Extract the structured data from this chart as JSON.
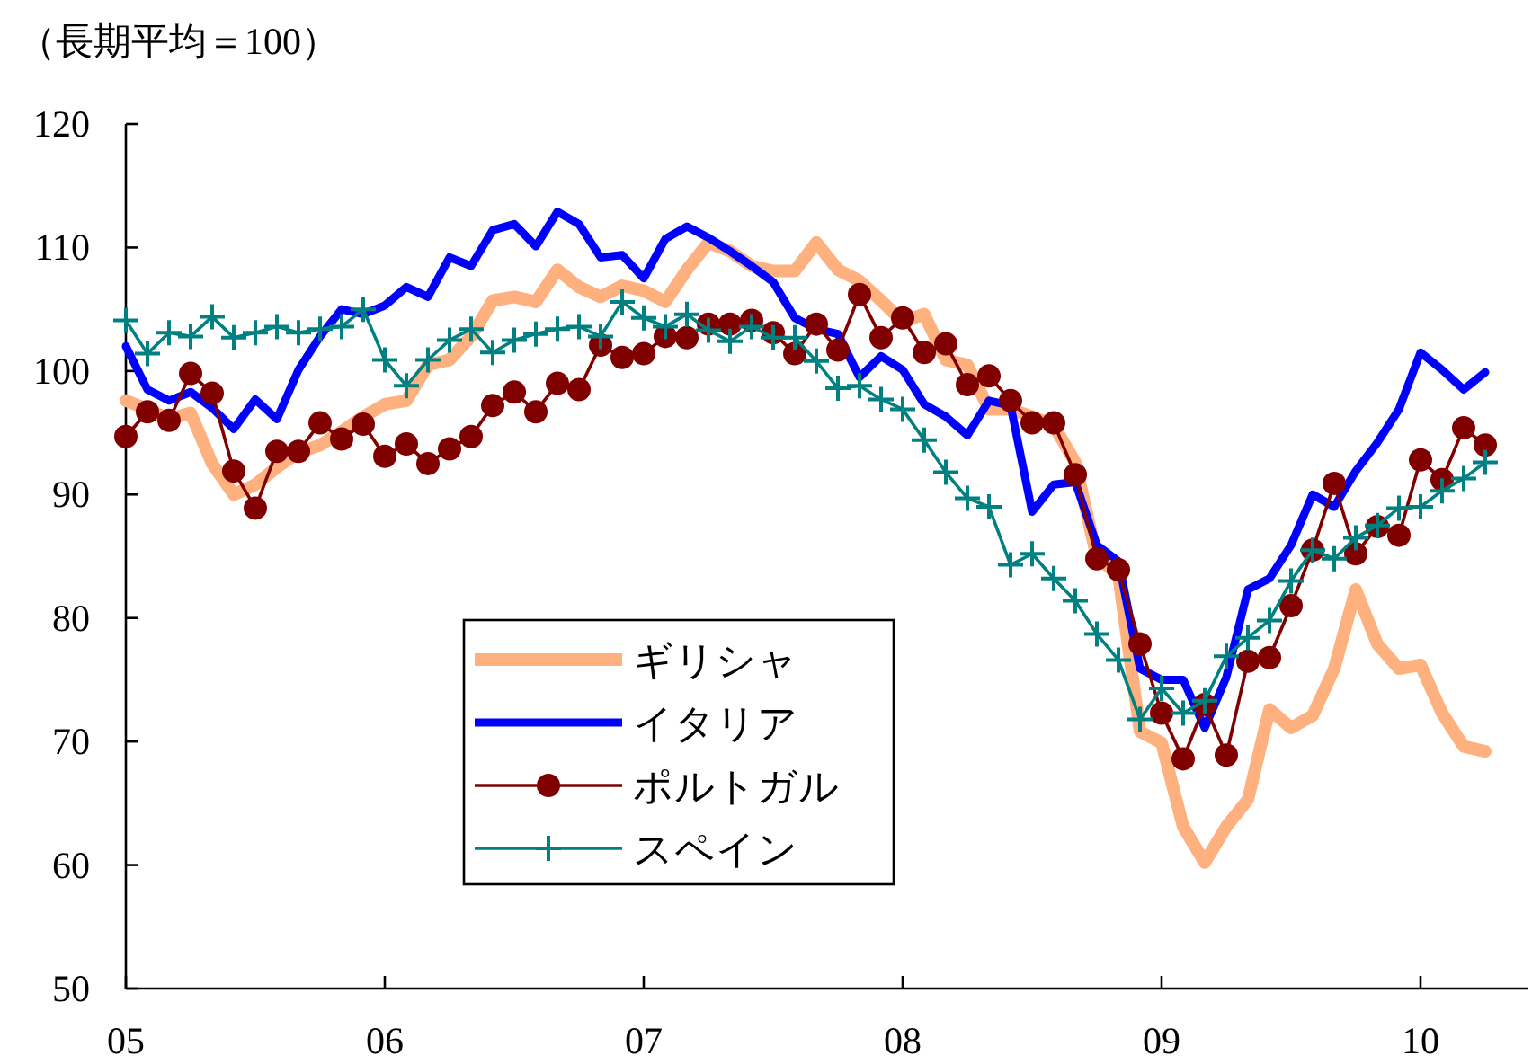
{
  "chart_data": {
    "type": "line",
    "ylabel": "（長期平均＝100）",
    "x": [
      "2005-01",
      "2005-02",
      "2005-03",
      "2005-04",
      "2005-05",
      "2005-06",
      "2005-07",
      "2005-08",
      "2005-09",
      "2005-10",
      "2005-11",
      "2005-12",
      "2006-01",
      "2006-02",
      "2006-03",
      "2006-04",
      "2006-05",
      "2006-06",
      "2006-07",
      "2006-08",
      "2006-09",
      "2006-10",
      "2006-11",
      "2006-12",
      "2007-01",
      "2007-02",
      "2007-03",
      "2007-04",
      "2007-05",
      "2007-06",
      "2007-07",
      "2007-08",
      "2007-09",
      "2007-10",
      "2007-11",
      "2007-12",
      "2008-01",
      "2008-02",
      "2008-03",
      "2008-04",
      "2008-05",
      "2008-06",
      "2008-07",
      "2008-08",
      "2008-09",
      "2008-10",
      "2008-11",
      "2008-12",
      "2009-01",
      "2009-02",
      "2009-03",
      "2009-04",
      "2009-05",
      "2009-06",
      "2009-07",
      "2009-08",
      "2009-09",
      "2009-10",
      "2009-11",
      "2009-12",
      "2010-01",
      "2010-02",
      "2010-03",
      "2010-04"
    ],
    "xlim": [
      "2005-01",
      "2010-06"
    ],
    "xticks": [
      {
        "value": "2005-01",
        "label": "05"
      },
      {
        "value": "2006-01",
        "label": "06"
      },
      {
        "value": "2007-01",
        "label": "07"
      },
      {
        "value": "2008-01",
        "label": "08"
      },
      {
        "value": "2009-01",
        "label": "09"
      },
      {
        "value": "2010-01",
        "label": "10"
      }
    ],
    "ylim": [
      50,
      120
    ],
    "yticks": [
      50,
      60,
      70,
      80,
      90,
      100,
      110,
      120
    ],
    "legend": "bottom",
    "grid": false,
    "series": [
      {
        "name": "ギリシャ",
        "color": "#ffb07f",
        "marker": "none",
        "values": [
          97.6,
          96.9,
          96.1,
          96.6,
          92.5,
          90.0,
          90.8,
          92.2,
          93.4,
          94.0,
          95.1,
          96.3,
          97.3,
          97.6,
          100.5,
          100.9,
          102.8,
          105.7,
          106.0,
          105.6,
          108.2,
          106.8,
          106.0,
          106.9,
          106.5,
          105.6,
          108.2,
          110.4,
          109.7,
          108.5,
          108.1,
          108.1,
          110.4,
          108.2,
          107.3,
          105.7,
          104.0,
          104.6,
          100.9,
          100.5,
          96.9,
          96.9,
          96.3,
          95.6,
          92.6,
          84.9,
          83.5,
          70.8,
          69.9,
          63.1,
          60.2,
          63.1,
          65.3,
          72.6,
          71.1,
          72.1,
          75.9,
          82.3,
          77.9,
          75.9,
          76.2,
          72.3,
          69.6,
          69.2
        ]
      },
      {
        "name": "イタリア",
        "color": "#0000ff",
        "marker": "none",
        "values": [
          102.0,
          98.5,
          97.6,
          98.3,
          97.0,
          95.3,
          97.7,
          96.1,
          100.1,
          102.8,
          105.0,
          104.6,
          105.3,
          106.8,
          106.0,
          109.2,
          108.5,
          111.4,
          111.9,
          110.1,
          112.9,
          111.9,
          109.2,
          109.4,
          107.5,
          110.7,
          111.7,
          110.8,
          109.7,
          108.5,
          107.2,
          104.3,
          103.4,
          103.0,
          99.5,
          101.2,
          100.1,
          97.3,
          96.3,
          94.8,
          97.6,
          97.2,
          88.6,
          90.8,
          91.0,
          85.9,
          84.6,
          75.9,
          75.0,
          75.0,
          71.1,
          75.2,
          82.3,
          83.2,
          85.9,
          90.0,
          89.0,
          91.9,
          94.2,
          96.9,
          101.5,
          100.1,
          98.5,
          99.9
        ]
      },
      {
        "name": "ポルトガル",
        "color": "#800000",
        "marker": "circle",
        "values": [
          94.7,
          96.7,
          96.0,
          99.8,
          98.2,
          91.9,
          88.9,
          93.5,
          93.5,
          95.8,
          94.5,
          95.7,
          93.1,
          94.1,
          92.5,
          93.7,
          94.7,
          97.2,
          98.3,
          96.7,
          99.0,
          98.5,
          102.1,
          101.1,
          101.4,
          102.8,
          102.7,
          103.8,
          103.8,
          104.1,
          103.1,
          101.4,
          103.8,
          101.7,
          106.2,
          102.7,
          104.3,
          101.5,
          102.2,
          98.9,
          99.6,
          97.6,
          95.8,
          95.8,
          91.6,
          84.8,
          83.9,
          77.9,
          72.3,
          68.6,
          73.0,
          68.9,
          76.5,
          76.8,
          81.0,
          85.5,
          90.9,
          85.2,
          87.4,
          86.7,
          92.8,
          91.2,
          95.4,
          94.0
        ]
      },
      {
        "name": "スペイン",
        "color": "#008080",
        "marker": "cross",
        "values": [
          104.1,
          101.4,
          103.1,
          102.8,
          104.4,
          102.7,
          103.1,
          103.6,
          103.1,
          103.4,
          103.6,
          105.0,
          100.9,
          98.8,
          100.9,
          102.5,
          103.4,
          101.5,
          102.5,
          103.0,
          103.4,
          103.6,
          102.8,
          105.6,
          104.3,
          103.6,
          104.6,
          103.3,
          102.4,
          103.6,
          102.7,
          102.7,
          100.8,
          98.6,
          98.8,
          97.7,
          96.9,
          94.4,
          91.8,
          89.7,
          89.0,
          84.3,
          85.2,
          83.2,
          81.4,
          78.7,
          76.6,
          71.8,
          74.3,
          72.3,
          73.3,
          76.9,
          78.4,
          79.8,
          83.0,
          85.5,
          84.8,
          86.5,
          87.5,
          88.9,
          89.0,
          90.3,
          91.3,
          92.6
        ]
      }
    ]
  }
}
